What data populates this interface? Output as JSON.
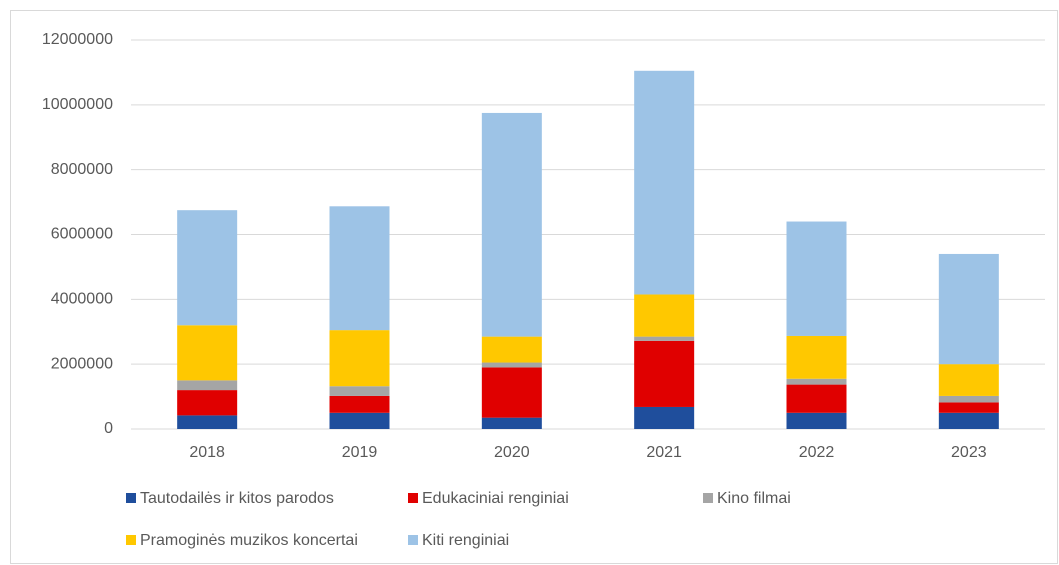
{
  "chart_data": {
    "type": "stacked_bar",
    "categories": [
      "2018",
      "2019",
      "2020",
      "2021",
      "2022",
      "2023"
    ],
    "series": [
      {
        "name": "Tautodailės ir kitos parodos",
        "color": "#1f4e9c",
        "values": [
          420000,
          500000,
          350000,
          680000,
          500000,
          500000
        ]
      },
      {
        "name": "Edukaciniai renginiai",
        "color": "#e00000",
        "values": [
          780000,
          520000,
          1550000,
          2040000,
          870000,
          320000
        ]
      },
      {
        "name": "Kino filmai",
        "color": "#a5a5a5",
        "values": [
          300000,
          300000,
          150000,
          130000,
          180000,
          200000
        ]
      },
      {
        "name": "Pramoginės muzikos koncertai",
        "color": "#ffc800",
        "values": [
          1700000,
          1730000,
          800000,
          1300000,
          1320000,
          980000
        ]
      },
      {
        "name": "Kiti renginiai",
        "color": "#9dc3e6",
        "values": [
          3550000,
          3820000,
          6900000,
          6900000,
          3530000,
          3400000
        ]
      }
    ],
    "ylim": [
      0,
      12000000
    ],
    "yticks": [
      0,
      2000000,
      4000000,
      6000000,
      8000000,
      10000000,
      12000000
    ],
    "grid": true
  }
}
